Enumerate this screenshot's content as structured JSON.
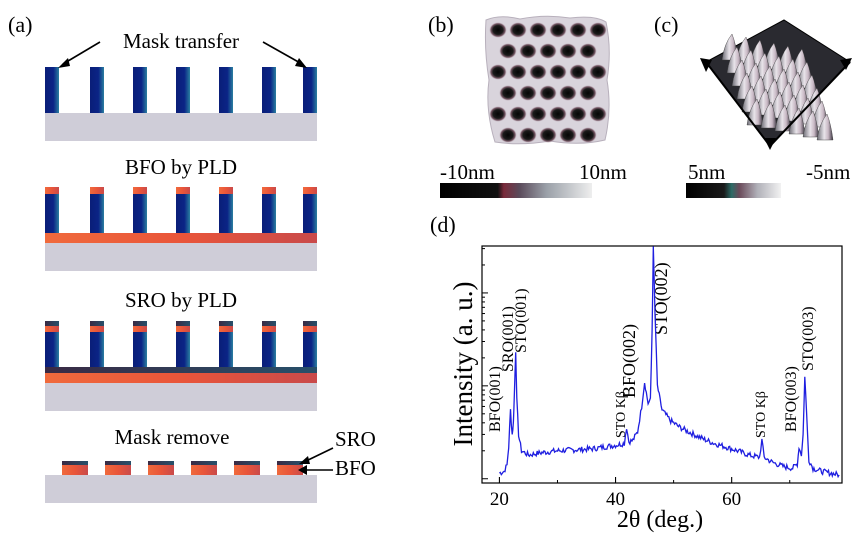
{
  "panel_a": {
    "label": "(a)",
    "steps": [
      "Mask transfer",
      "BFO by PLD",
      "SRO by PLD",
      "Mask remove"
    ],
    "layer_labels": [
      "SRO",
      "BFO"
    ]
  },
  "panel_b": {
    "label": "(b)",
    "scale_min": "-10nm",
    "scale_max": "10nm"
  },
  "panel_c": {
    "label": "(c)",
    "scale_min": "5nm",
    "scale_max": "-5nm"
  },
  "colors": {
    "mask": "#0b1f7a",
    "substrate": "#cfcdd8",
    "bfo": "#e5633e",
    "sro": "#2e2a4a",
    "xrd_line": "#1f1fe0"
  },
  "chart_data": {
    "type": "line",
    "label": "(d)",
    "xlabel": "2θ (deg.)",
    "ylabel": "Intensity (a. u.)",
    "xlim": [
      17,
      79
    ],
    "x_ticks": [
      20,
      40,
      60
    ],
    "y_scale": "log",
    "peaks": [
      {
        "label": "BFO(001)",
        "x": 21.9
      },
      {
        "label": "SRO(001)",
        "x": 22.4
      },
      {
        "label": "STO(001)",
        "x": 22.8
      },
      {
        "label": "STO Kβ",
        "x": 41.9
      },
      {
        "label": "BFO(002)",
        "x": 45.0
      },
      {
        "label": "STO(002)",
        "x": 46.5
      },
      {
        "label": "STO Kβ",
        "x": 65.2
      },
      {
        "label": "BFO(003)",
        "x": 71.6
      },
      {
        "label": "STO(003)",
        "x": 72.6
      }
    ],
    "series": [
      {
        "x": [
          20,
          20.8,
          21.3,
          21.6,
          21.9,
          22.2,
          22.4,
          22.6,
          22.8,
          23.0,
          23.3,
          23.8,
          25,
          27,
          30,
          33,
          36,
          38,
          40,
          41.5,
          41.9,
          42.3,
          43,
          43.8,
          44.5,
          45.0,
          45.6,
          46.0,
          46.3,
          46.5,
          46.8,
          47.2,
          48,
          49.5,
          51,
          53,
          55,
          57,
          59,
          61,
          63,
          64.8,
          65.2,
          65.6,
          67,
          69,
          70.5,
          71.3,
          71.6,
          72.0,
          72.3,
          72.6,
          72.9,
          73.3,
          74,
          75.5,
          77,
          78.5
        ],
        "y": [
          1.15,
          1.2,
          1.4,
          2.2,
          5.5,
          3.0,
          4.0,
          9.0,
          24.0,
          7.0,
          3.0,
          2.0,
          1.8,
          1.9,
          2.0,
          2.05,
          2.1,
          2.2,
          2.3,
          2.4,
          3.6,
          2.5,
          2.6,
          3.2,
          6.0,
          11.0,
          6.5,
          7.0,
          40.0,
          300.0,
          60.0,
          10.0,
          5.5,
          4.2,
          3.6,
          3.1,
          2.7,
          2.4,
          2.2,
          2.0,
          1.8,
          1.7,
          2.6,
          1.7,
          1.5,
          1.35,
          1.3,
          1.45,
          2.2,
          1.8,
          3.0,
          13.0,
          5.0,
          1.6,
          1.3,
          1.2,
          1.15,
          1.1
        ]
      }
    ]
  }
}
